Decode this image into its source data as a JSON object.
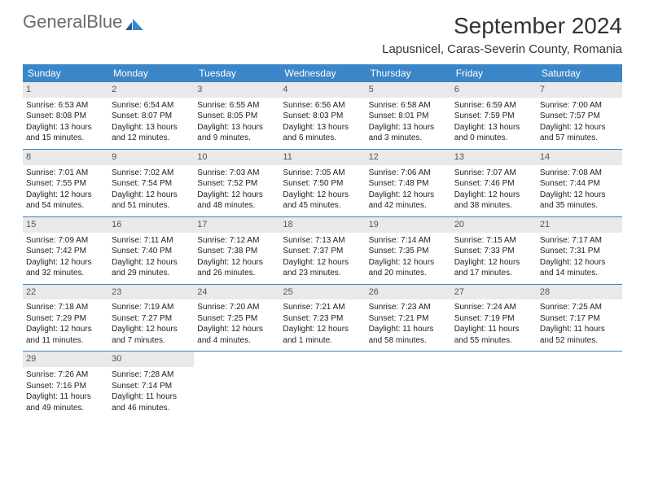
{
  "brand": {
    "name_part1": "General",
    "name_part2": "Blue"
  },
  "header": {
    "title": "September 2024",
    "location": "Lapusnicel, Caras-Severin County, Romania"
  },
  "colors": {
    "header_bar": "#3a86c8",
    "daynum_bg": "#e9e9e9",
    "text": "#222222",
    "brand_gray": "#6b6b6b",
    "brand_blue": "#3a86c8",
    "background": "#ffffff"
  },
  "typography": {
    "title_fontsize_pt": 21,
    "location_fontsize_pt": 11,
    "dow_fontsize_pt": 9,
    "cell_fontsize_pt": 7.5
  },
  "days_of_week": [
    "Sunday",
    "Monday",
    "Tuesday",
    "Wednesday",
    "Thursday",
    "Friday",
    "Saturday"
  ],
  "weeks": [
    [
      {
        "n": "1",
        "sr": "6:53 AM",
        "ss": "8:08 PM",
        "dl": "13 hours and 15 minutes."
      },
      {
        "n": "2",
        "sr": "6:54 AM",
        "ss": "8:07 PM",
        "dl": "13 hours and 12 minutes."
      },
      {
        "n": "3",
        "sr": "6:55 AM",
        "ss": "8:05 PM",
        "dl": "13 hours and 9 minutes."
      },
      {
        "n": "4",
        "sr": "6:56 AM",
        "ss": "8:03 PM",
        "dl": "13 hours and 6 minutes."
      },
      {
        "n": "5",
        "sr": "6:58 AM",
        "ss": "8:01 PM",
        "dl": "13 hours and 3 minutes."
      },
      {
        "n": "6",
        "sr": "6:59 AM",
        "ss": "7:59 PM",
        "dl": "13 hours and 0 minutes."
      },
      {
        "n": "7",
        "sr": "7:00 AM",
        "ss": "7:57 PM",
        "dl": "12 hours and 57 minutes."
      }
    ],
    [
      {
        "n": "8",
        "sr": "7:01 AM",
        "ss": "7:55 PM",
        "dl": "12 hours and 54 minutes."
      },
      {
        "n": "9",
        "sr": "7:02 AM",
        "ss": "7:54 PM",
        "dl": "12 hours and 51 minutes."
      },
      {
        "n": "10",
        "sr": "7:03 AM",
        "ss": "7:52 PM",
        "dl": "12 hours and 48 minutes."
      },
      {
        "n": "11",
        "sr": "7:05 AM",
        "ss": "7:50 PM",
        "dl": "12 hours and 45 minutes."
      },
      {
        "n": "12",
        "sr": "7:06 AM",
        "ss": "7:48 PM",
        "dl": "12 hours and 42 minutes."
      },
      {
        "n": "13",
        "sr": "7:07 AM",
        "ss": "7:46 PM",
        "dl": "12 hours and 38 minutes."
      },
      {
        "n": "14",
        "sr": "7:08 AM",
        "ss": "7:44 PM",
        "dl": "12 hours and 35 minutes."
      }
    ],
    [
      {
        "n": "15",
        "sr": "7:09 AM",
        "ss": "7:42 PM",
        "dl": "12 hours and 32 minutes."
      },
      {
        "n": "16",
        "sr": "7:11 AM",
        "ss": "7:40 PM",
        "dl": "12 hours and 29 minutes."
      },
      {
        "n": "17",
        "sr": "7:12 AM",
        "ss": "7:38 PM",
        "dl": "12 hours and 26 minutes."
      },
      {
        "n": "18",
        "sr": "7:13 AM",
        "ss": "7:37 PM",
        "dl": "12 hours and 23 minutes."
      },
      {
        "n": "19",
        "sr": "7:14 AM",
        "ss": "7:35 PM",
        "dl": "12 hours and 20 minutes."
      },
      {
        "n": "20",
        "sr": "7:15 AM",
        "ss": "7:33 PM",
        "dl": "12 hours and 17 minutes."
      },
      {
        "n": "21",
        "sr": "7:17 AM",
        "ss": "7:31 PM",
        "dl": "12 hours and 14 minutes."
      }
    ],
    [
      {
        "n": "22",
        "sr": "7:18 AM",
        "ss": "7:29 PM",
        "dl": "12 hours and 11 minutes."
      },
      {
        "n": "23",
        "sr": "7:19 AM",
        "ss": "7:27 PM",
        "dl": "12 hours and 7 minutes."
      },
      {
        "n": "24",
        "sr": "7:20 AM",
        "ss": "7:25 PM",
        "dl": "12 hours and 4 minutes."
      },
      {
        "n": "25",
        "sr": "7:21 AM",
        "ss": "7:23 PM",
        "dl": "12 hours and 1 minute."
      },
      {
        "n": "26",
        "sr": "7:23 AM",
        "ss": "7:21 PM",
        "dl": "11 hours and 58 minutes."
      },
      {
        "n": "27",
        "sr": "7:24 AM",
        "ss": "7:19 PM",
        "dl": "11 hours and 55 minutes."
      },
      {
        "n": "28",
        "sr": "7:25 AM",
        "ss": "7:17 PM",
        "dl": "11 hours and 52 minutes."
      }
    ],
    [
      {
        "n": "29",
        "sr": "7:26 AM",
        "ss": "7:16 PM",
        "dl": "11 hours and 49 minutes."
      },
      {
        "n": "30",
        "sr": "7:28 AM",
        "ss": "7:14 PM",
        "dl": "11 hours and 46 minutes."
      },
      null,
      null,
      null,
      null,
      null
    ]
  ],
  "labels": {
    "sunrise": "Sunrise: ",
    "sunset": "Sunset: ",
    "daylight": "Daylight: "
  }
}
